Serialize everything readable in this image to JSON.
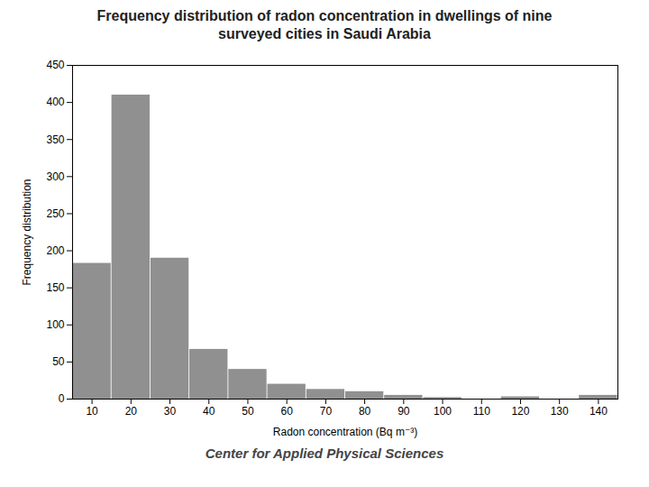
{
  "chart_data": {
    "type": "bar",
    "title": "Frequency distribution of radon concentration in dwellings of nine\nsurveyed cities in Saudi Arabia",
    "xlabel": "Radon concentration (Bq m⁻³)",
    "ylabel": "Frequency distribution",
    "caption": "Center for Applied Physical Sciences",
    "x": [
      10,
      20,
      30,
      40,
      50,
      60,
      70,
      80,
      90,
      100,
      110,
      120,
      130,
      140
    ],
    "values": [
      183,
      410,
      190,
      67,
      40,
      20,
      13,
      10,
      5,
      2,
      0,
      3,
      0,
      5
    ],
    "color": "#909090",
    "xlim": [
      5,
      145
    ],
    "xticks": [
      10,
      20,
      30,
      40,
      50,
      60,
      70,
      80,
      90,
      100,
      110,
      120,
      130,
      140
    ],
    "ylim": [
      0,
      450
    ],
    "yticks": [
      0,
      50,
      100,
      150,
      200,
      250,
      300,
      350,
      400,
      450
    ],
    "grid": false
  }
}
